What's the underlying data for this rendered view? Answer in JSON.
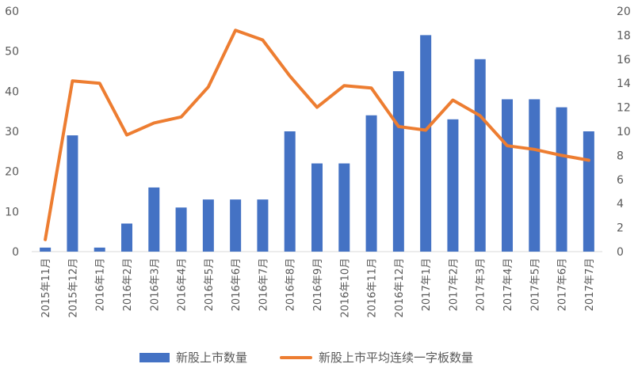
{
  "chart_data": {
    "type": "bar+line",
    "categories": [
      "2015年11月",
      "2015年12月",
      "2016年1月",
      "2016年2月",
      "2016年3月",
      "2016年4月",
      "2016年5月",
      "2016年6月",
      "2016年7月",
      "2016年8月",
      "2016年9月",
      "2016年10月",
      "2016年11月",
      "2016年12月",
      "2017年1月",
      "2017年2月",
      "2017年3月",
      "2017年4月",
      "2017年5月",
      "2017年6月",
      "2017年7月"
    ],
    "series": [
      {
        "name": "新股上市数量",
        "type": "bar",
        "axis": "left",
        "color": "#4472C4",
        "values": [
          1,
          29,
          1,
          7,
          16,
          11,
          13,
          13,
          13,
          30,
          22,
          22,
          34,
          45,
          54,
          33,
          48,
          38,
          38,
          36,
          30
        ]
      },
      {
        "name": "新股上市平均连续一字板数量",
        "type": "line",
        "axis": "right",
        "color": "#ED7D31",
        "values": [
          1,
          14.2,
          14,
          9.7,
          10.7,
          11.2,
          13.7,
          18.4,
          17.6,
          14.6,
          12,
          13.8,
          13.6,
          10.4,
          10.1,
          12.6,
          11.3,
          8.8,
          8.5,
          8,
          7.6
        ]
      }
    ],
    "y_left": {
      "ticks": [
        "0",
        "10",
        "20",
        "30",
        "40",
        "50",
        "60"
      ],
      "ylim": [
        0,
        60
      ]
    },
    "y_right": {
      "ticks": [
        "0",
        "2",
        "4",
        "6",
        "8",
        "10",
        "12",
        "14",
        "16",
        "18",
        "20"
      ],
      "ylim": [
        0,
        20
      ]
    },
    "grid": false,
    "legend_position": "bottom"
  }
}
